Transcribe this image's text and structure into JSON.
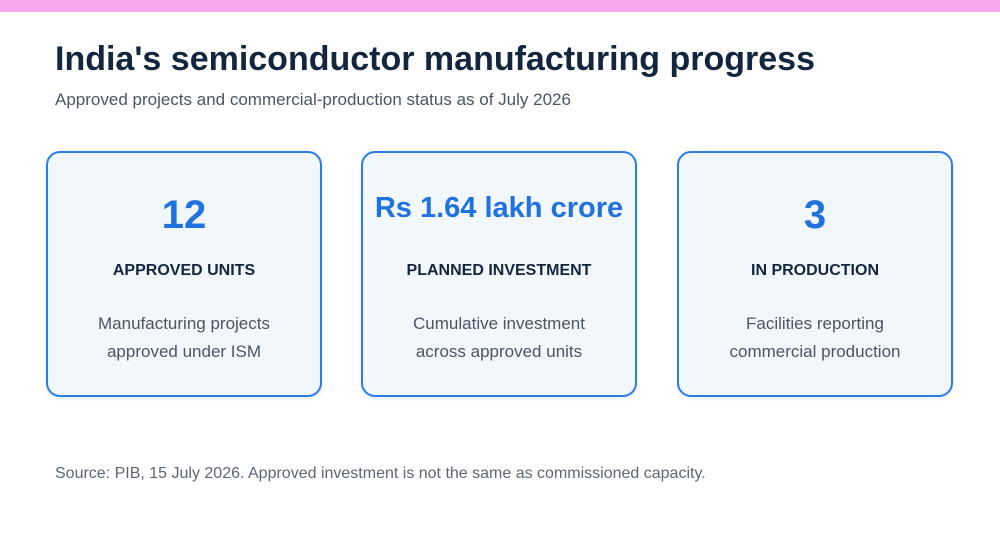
{
  "header": {
    "title": "India's semiconductor manufacturing progress",
    "subtitle": "Approved projects and commercial-production status as of July 2026"
  },
  "stats": [
    {
      "value": "12",
      "label": "APPROVED UNITS",
      "description_lines": [
        "Manufacturing projects",
        "approved under ISM"
      ]
    },
    {
      "value": "Rs 1.64 lakh crore",
      "label": "PLANNED INVESTMENT",
      "description_lines": [
        "Cumulative investment",
        "across approved units"
      ]
    },
    {
      "value": "3",
      "label": "IN PRODUCTION",
      "description_lines": [
        "Facilities reporting",
        "commercial production"
      ]
    }
  ],
  "footer": {
    "source": "Source: PIB, 15 July 2026. Approved investment is not the same as commissioned capacity."
  },
  "colors": {
    "accent_bar": "#f9a8f0",
    "card_border": "#2b7de9",
    "stat_value": "#1f72e0",
    "card_background": "#f2f7fc",
    "title_text": "#13263f"
  }
}
